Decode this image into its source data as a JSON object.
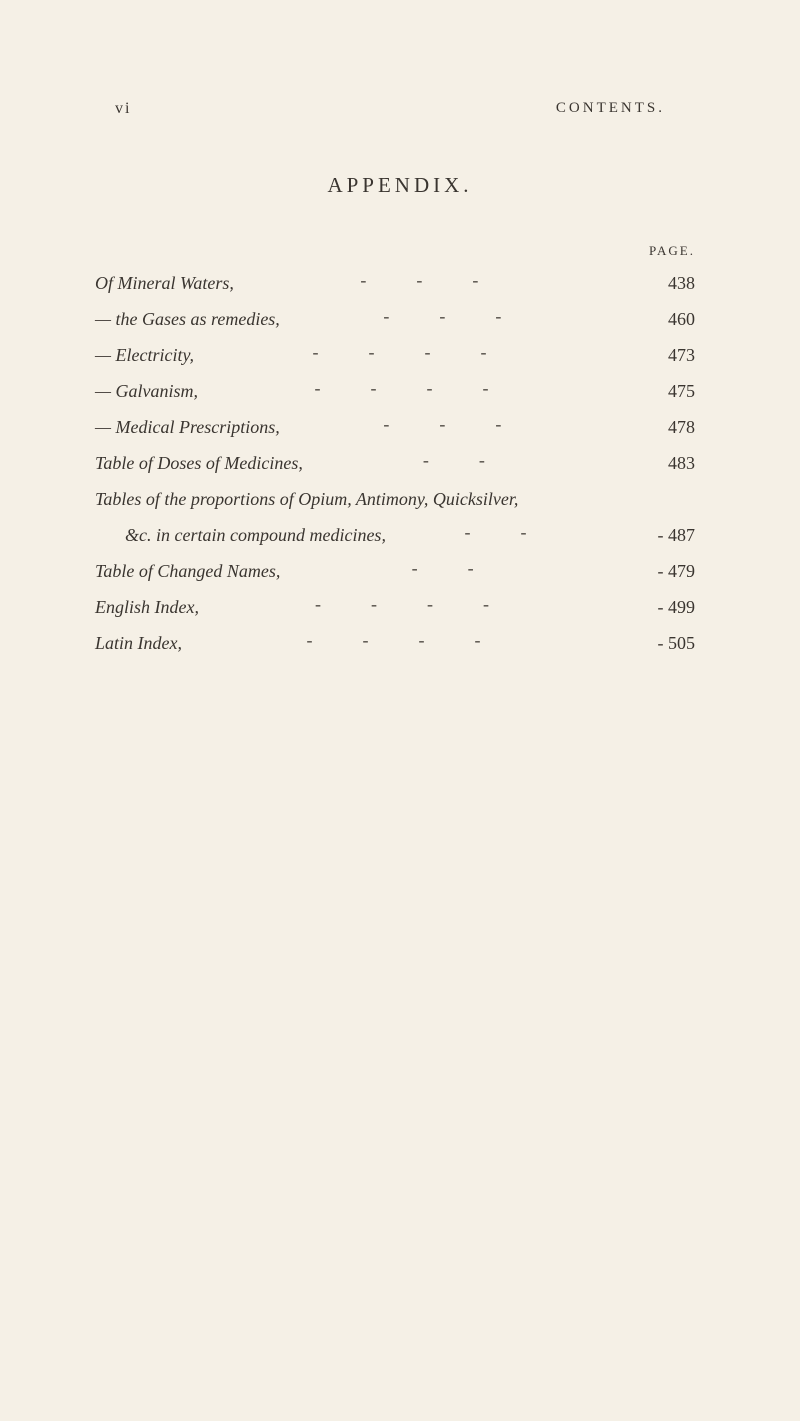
{
  "page": {
    "folio": "vi",
    "running_head": "CONTENTS.",
    "section_title": "APPENDIX.",
    "page_label": "PAGE."
  },
  "entries": [
    {
      "title": "Of Mineral Waters,",
      "page": "438"
    },
    {
      "title": "— the Gases as remedies,",
      "page": "460"
    },
    {
      "title": "— Electricity,",
      "page": "473"
    },
    {
      "title": "— Galvanism,",
      "page": "475"
    },
    {
      "title": "— Medical Prescriptions,",
      "page": "478"
    },
    {
      "title": "Table of Doses of Medicines,",
      "page": "483"
    }
  ],
  "multi_entry": {
    "line1": "Tables of the proportions of Opium, Antimony, Quicksilver,",
    "line2": "&c. in certain compound medicines,",
    "page": "487"
  },
  "entries2": [
    {
      "title": "Table of Changed Names,",
      "page": "479"
    },
    {
      "title": "English Index,",
      "page": "499"
    },
    {
      "title": "Latin Index,",
      "page": "505"
    }
  ],
  "style": {
    "background": "#f5f0e6",
    "text_color": "#3a3530",
    "title_fontsize": 21,
    "body_fontsize": 18,
    "header_fontsize": 15
  }
}
